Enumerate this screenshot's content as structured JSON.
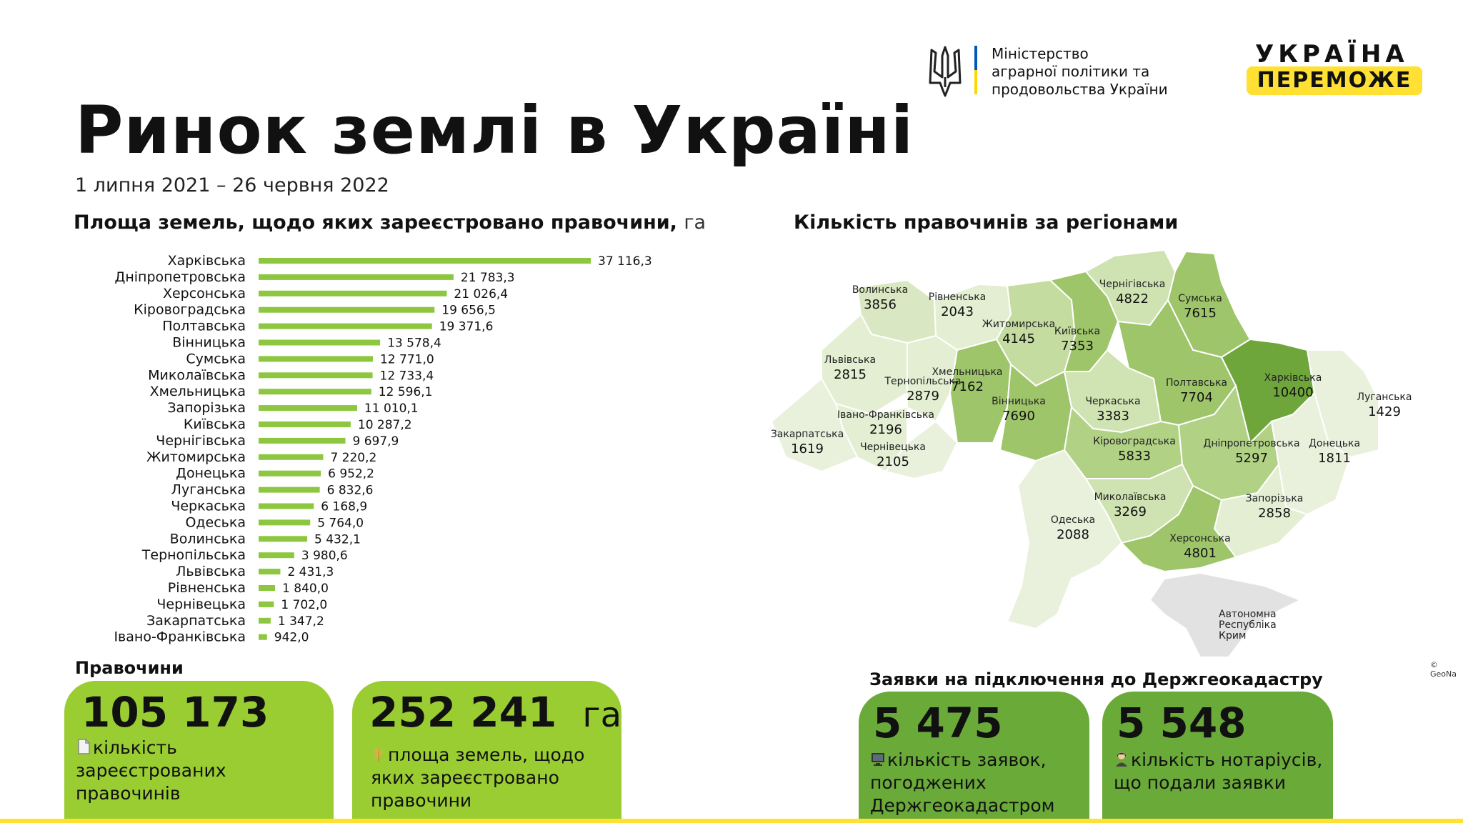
{
  "header": {
    "title": "Ринок землі в Україні",
    "period": "1 липня 2021 – 26 червня 2022",
    "ministry": "Міністерство\nаграрної політики та\nпродовольства України",
    "badge_top": "УКРАЇНА",
    "badge_bottom": "ПЕРЕМОЖЕ"
  },
  "chart_heading": {
    "text": "Площа земель, щодо яких зареєстровано правочини,",
    "unit": "га"
  },
  "map_heading": "Кількість правочинів за регіонами",
  "chart_data": {
    "type": "bar",
    "orientation": "horizontal",
    "title": "Площа земель, щодо яких зареєстровано правочини, га",
    "color": "#8dc63f",
    "categories": [
      "Харківська",
      "Дніпропетровська",
      "Херсонська",
      "Кіровоградська",
      "Полтавська",
      "Вінницька",
      "Сумська",
      "Миколаївська",
      "Хмельницька",
      "Запорізька",
      "Київська",
      "Чернігівська",
      "Житомирська",
      "Донецька",
      "Луганська",
      "Черкаська",
      "Одеська",
      "Волинська",
      "Тернопільська",
      "Львівська",
      "Рівненська",
      "Чернівецька",
      "Закарпатська",
      "Івано-Франківська"
    ],
    "values": [
      37116.3,
      21783.3,
      21026.4,
      19656.5,
      19371.6,
      13578.4,
      12771.0,
      12733.4,
      12596.1,
      11010.1,
      10287.2,
      9697.9,
      7220.2,
      6952.2,
      6832.6,
      6168.9,
      5764.0,
      5432.1,
      3980.6,
      2431.3,
      1840.0,
      1702.0,
      1347.2,
      942.0
    ],
    "value_labels": [
      "37 116,3",
      "21 783,3",
      "21 026,4",
      "19 656,5",
      "19 371,6",
      "13 578,4",
      "12 771,0",
      "12 733,4",
      "12 596,1",
      "11 010,1",
      "10 287,2",
      "9 697,9",
      "7 220,2",
      "6 952,2",
      "6 832,6",
      "6 168,9",
      "5 764,0",
      "5 432,1",
      "3 980,6",
      "2 431,3",
      "1 840,0",
      "1 702,0",
      "1 347,2",
      "942,0"
    ]
  },
  "map": {
    "regions": [
      {
        "name": "Волинська",
        "value": "3856"
      },
      {
        "name": "Рівненська",
        "value": "2043"
      },
      {
        "name": "Житомирська",
        "value": "4145"
      },
      {
        "name": "Київська",
        "value": "7353"
      },
      {
        "name": "Чернігівська",
        "value": "4822"
      },
      {
        "name": "Сумська",
        "value": "7615"
      },
      {
        "name": "Львівська",
        "value": "2815"
      },
      {
        "name": "Тернопільська",
        "value": "2879"
      },
      {
        "name": "Хмельницька",
        "value": "7162"
      },
      {
        "name": "Вінницька",
        "value": "7690"
      },
      {
        "name": "Черкаська",
        "value": "3383"
      },
      {
        "name": "Полтавська",
        "value": "7704"
      },
      {
        "name": "Харківська",
        "value": "10400"
      },
      {
        "name": "Луганська",
        "value": "1429"
      },
      {
        "name": "Івано-Франківська",
        "value": "2196"
      },
      {
        "name": "Закарпатська",
        "value": "1619"
      },
      {
        "name": "Чернівецька",
        "value": "2105"
      },
      {
        "name": "Кіровоградська",
        "value": "5833"
      },
      {
        "name": "Дніпропетровська",
        "value": "5297"
      },
      {
        "name": "Донецька",
        "value": "1811"
      },
      {
        "name": "Миколаївська",
        "value": "3269"
      },
      {
        "name": "Запорізька",
        "value": "2858"
      },
      {
        "name": "Одеська",
        "value": "2088"
      },
      {
        "name": "Херсонська",
        "value": "4801"
      },
      {
        "name": "Автономна Республіка Крим",
        "value": ""
      }
    ],
    "crimea_label": [
      "Автономна",
      "Республіка",
      "Крим"
    ],
    "copyright": "© GeoNa"
  },
  "deals_heading": "Правочини",
  "apps_heading": "Заявки на підключення до Держгеокадастру",
  "cards": {
    "deals": {
      "big": "105 173",
      "text": "кількість зареєстрованих правочинів",
      "icon": "document-icon"
    },
    "area": {
      "big": "252 241",
      "unit": "га",
      "text": "площа земель, щодо яких зареєстровано правочини",
      "icon": "wheat-icon"
    },
    "apps": {
      "big": "5 475",
      "text": "кількість заявок, погоджених Держгеокадастром",
      "icon": "computer-icon"
    },
    "notary": {
      "big": "5 548",
      "text": "кількість нотаріусів, що подали заявки",
      "icon": "notary-icon"
    }
  },
  "colors": {
    "bar": "#8dc63f",
    "card_light": "#9acd32",
    "card_dark": "#6aaa38",
    "accent_yellow": "#ffe033"
  }
}
